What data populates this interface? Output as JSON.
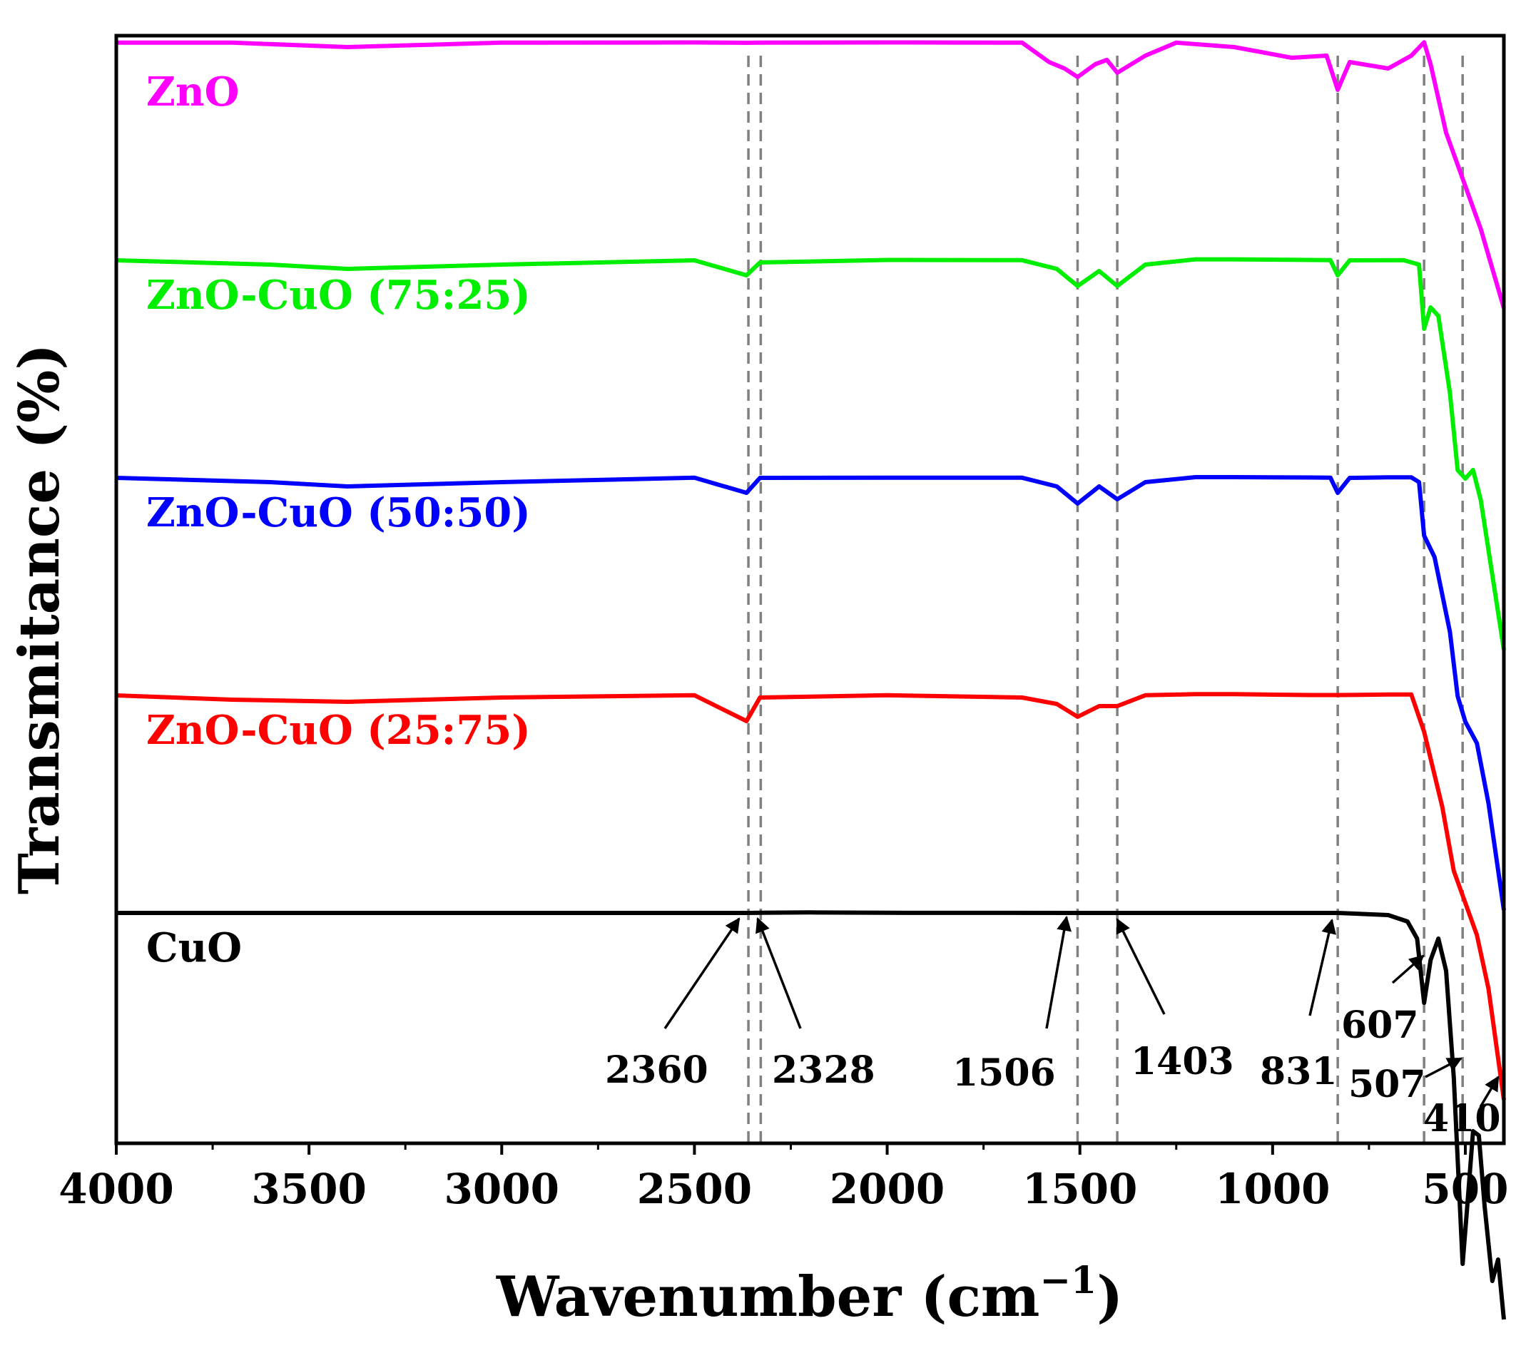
{
  "chart_data": {
    "type": "line",
    "title": "",
    "xlabel": "Wavenumber (cm",
    "xlabel_sup": "−1",
    "xlabel_close": ")",
    "ylabel": "Transmitance (%)",
    "xlim": [
      4000,
      400
    ],
    "x_ticks": [
      4000,
      3500,
      3000,
      2500,
      2000,
      1500,
      1000,
      500
    ],
    "x_tick_labels": [
      "4000",
      "3500",
      "3000",
      "2500",
      "2000",
      "1500",
      "1000",
      "500"
    ],
    "y_ticks_shown": false,
    "series": [
      {
        "name": "ZnO",
        "color": "#ff00ff",
        "offset": 4,
        "points": [
          [
            4000,
            0.93
          ],
          [
            3700,
            0.93
          ],
          [
            3400,
            0.9
          ],
          [
            3000,
            0.93
          ],
          [
            2500,
            0.94
          ],
          [
            2365,
            0.92
          ],
          [
            2330,
            0.93
          ],
          [
            2000,
            0.94
          ],
          [
            1650,
            0.93
          ],
          [
            1580,
            0.83
          ],
          [
            1540,
            0.8
          ],
          [
            1506,
            0.76
          ],
          [
            1460,
            0.82
          ],
          [
            1430,
            0.84
          ],
          [
            1403,
            0.78
          ],
          [
            1330,
            0.86
          ],
          [
            1250,
            0.93
          ],
          [
            1100,
            0.9
          ],
          [
            950,
            0.85
          ],
          [
            860,
            0.86
          ],
          [
            831,
            0.7
          ],
          [
            800,
            0.83
          ],
          [
            700,
            0.8
          ],
          [
            640,
            0.86
          ],
          [
            607,
            0.95
          ],
          [
            590,
            0.82
          ],
          [
            550,
            0.5
          ],
          [
            500,
            0.25
          ],
          [
            460,
            0.05
          ],
          [
            400,
            -0.32
          ]
        ]
      },
      {
        "name": "ZnO-CuO (75:25)",
        "color": "#00ee00",
        "offset": 3,
        "points": [
          [
            4000,
            0.92
          ],
          [
            3600,
            0.9
          ],
          [
            3400,
            0.88
          ],
          [
            3000,
            0.9
          ],
          [
            2500,
            0.92
          ],
          [
            2365,
            0.85
          ],
          [
            2330,
            0.91
          ],
          [
            2000,
            0.94
          ],
          [
            1650,
            0.93
          ],
          [
            1560,
            0.88
          ],
          [
            1506,
            0.8
          ],
          [
            1450,
            0.87
          ],
          [
            1403,
            0.8
          ],
          [
            1330,
            0.9
          ],
          [
            1200,
            0.98
          ],
          [
            1100,
            0.98
          ],
          [
            900,
            0.94
          ],
          [
            850,
            0.93
          ],
          [
            831,
            0.85
          ],
          [
            800,
            0.92
          ],
          [
            660,
            0.93
          ],
          [
            620,
            0.9
          ],
          [
            607,
            0.6
          ],
          [
            590,
            0.7
          ],
          [
            570,
            0.66
          ],
          [
            540,
            0.3
          ],
          [
            520,
            -0.06
          ],
          [
            500,
            -0.1
          ],
          [
            480,
            -0.06
          ],
          [
            460,
            -0.2
          ],
          [
            430,
            -0.55
          ],
          [
            400,
            -0.9
          ]
        ]
      },
      {
        "name": "ZnO-CuO (50:50)",
        "color": "#0000ff",
        "offset": 2,
        "points": [
          [
            4000,
            0.92
          ],
          [
            3600,
            0.9
          ],
          [
            3400,
            0.88
          ],
          [
            3000,
            0.9
          ],
          [
            2500,
            0.93
          ],
          [
            2365,
            0.85
          ],
          [
            2330,
            0.92
          ],
          [
            2000,
            0.93
          ],
          [
            1650,
            0.93
          ],
          [
            1560,
            0.88
          ],
          [
            1506,
            0.8
          ],
          [
            1450,
            0.88
          ],
          [
            1403,
            0.82
          ],
          [
            1330,
            0.9
          ],
          [
            1200,
            0.96
          ],
          [
            1100,
            0.96
          ],
          [
            900,
            0.94
          ],
          [
            850,
            0.93
          ],
          [
            831,
            0.85
          ],
          [
            800,
            0.92
          ],
          [
            700,
            0.95
          ],
          [
            640,
            0.95
          ],
          [
            620,
            0.9
          ],
          [
            607,
            0.65
          ],
          [
            580,
            0.55
          ],
          [
            540,
            0.2
          ],
          [
            520,
            -0.1
          ],
          [
            500,
            -0.22
          ],
          [
            470,
            -0.32
          ],
          [
            440,
            -0.6
          ],
          [
            400,
            -1.1
          ]
        ]
      },
      {
        "name": "ZnO-CuO (25:75)",
        "color": "#ff0000",
        "offset": 1,
        "points": [
          [
            4000,
            0.92
          ],
          [
            3700,
            0.9
          ],
          [
            3400,
            0.89
          ],
          [
            3000,
            0.91
          ],
          [
            2500,
            0.93
          ],
          [
            2365,
            0.8
          ],
          [
            2330,
            0.91
          ],
          [
            2000,
            0.93
          ],
          [
            1650,
            0.91
          ],
          [
            1560,
            0.88
          ],
          [
            1506,
            0.82
          ],
          [
            1450,
            0.87
          ],
          [
            1403,
            0.87
          ],
          [
            1330,
            0.93
          ],
          [
            1200,
            0.99
          ],
          [
            1100,
            0.99
          ],
          [
            900,
            0.94
          ],
          [
            831,
            0.94
          ],
          [
            700,
            0.97
          ],
          [
            640,
            0.97
          ],
          [
            607,
            0.75
          ],
          [
            560,
            0.4
          ],
          [
            530,
            0.1
          ],
          [
            500,
            -0.05
          ],
          [
            470,
            -0.2
          ],
          [
            440,
            -0.45
          ],
          [
            400,
            -0.97
          ]
        ]
      },
      {
        "name": "CuO",
        "color": "#000000",
        "offset": 0,
        "points": [
          [
            4000,
            0.92
          ],
          [
            3500,
            0.92
          ],
          [
            3000,
            0.92
          ],
          [
            2360,
            0.92
          ],
          [
            2328,
            0.93
          ],
          [
            2200,
            0.95
          ],
          [
            2000,
            0.93
          ],
          [
            1506,
            0.92
          ],
          [
            1403,
            0.92
          ],
          [
            1000,
            0.92
          ],
          [
            831,
            0.92
          ],
          [
            700,
            0.91
          ],
          [
            650,
            0.88
          ],
          [
            625,
            0.8
          ],
          [
            607,
            0.5
          ],
          [
            590,
            0.7
          ],
          [
            570,
            0.8
          ],
          [
            550,
            0.65
          ],
          [
            530,
            0.15
          ],
          [
            507,
            -0.72
          ],
          [
            495,
            -0.45
          ],
          [
            480,
            -0.1
          ],
          [
            465,
            -0.12
          ],
          [
            450,
            -0.45
          ],
          [
            430,
            -0.8
          ],
          [
            415,
            -0.7
          ],
          [
            400,
            -0.98
          ]
        ]
      }
    ],
    "reference_lines": [
      2360,
      2328,
      1506,
      1403,
      831,
      607,
      507
    ],
    "peak_labels": [
      "2360",
      "2328",
      "1506",
      "1403",
      "831",
      "607",
      "507",
      "410"
    ]
  }
}
